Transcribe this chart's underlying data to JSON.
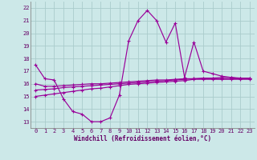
{
  "xlabel": "Windchill (Refroidissement éolien,°C)",
  "background_color": "#cce8e8",
  "grid_color": "#aacccc",
  "line_color": "#990099",
  "xlim": [
    -0.5,
    23.5
  ],
  "ylim": [
    12.5,
    22.5
  ],
  "yticks": [
    13,
    14,
    15,
    16,
    17,
    18,
    19,
    20,
    21,
    22
  ],
  "xticks": [
    0,
    1,
    2,
    3,
    4,
    5,
    6,
    7,
    8,
    9,
    10,
    11,
    12,
    13,
    14,
    15,
    16,
    17,
    18,
    19,
    20,
    21,
    22,
    23
  ],
  "hours": [
    0,
    1,
    2,
    3,
    4,
    5,
    6,
    7,
    8,
    9,
    10,
    11,
    12,
    13,
    14,
    15,
    16,
    17,
    18,
    19,
    20,
    21,
    22,
    23
  ],
  "line1": [
    17.5,
    16.4,
    16.3,
    14.8,
    13.8,
    13.6,
    13.0,
    13.0,
    13.3,
    15.1,
    19.4,
    21.0,
    21.8,
    21.0,
    19.3,
    20.8,
    16.5,
    19.3,
    17.0,
    16.8,
    16.6,
    16.5,
    16.4,
    16.4
  ],
  "line2": [
    16.0,
    15.8,
    15.8,
    15.85,
    15.9,
    15.95,
    16.0,
    16.0,
    16.05,
    16.1,
    16.15,
    16.2,
    16.25,
    16.3,
    16.3,
    16.35,
    16.4,
    16.4,
    16.45,
    16.45,
    16.5,
    16.5,
    16.45,
    16.45
  ],
  "line3": [
    15.5,
    15.55,
    15.6,
    15.7,
    15.75,
    15.8,
    15.85,
    15.9,
    15.95,
    16.0,
    16.05,
    16.1,
    16.15,
    16.2,
    16.25,
    16.3,
    16.35,
    16.4,
    16.4,
    16.4,
    16.4,
    16.4,
    16.4,
    16.4
  ],
  "line4": [
    15.0,
    15.1,
    15.2,
    15.3,
    15.4,
    15.5,
    15.6,
    15.65,
    15.75,
    15.85,
    15.95,
    16.0,
    16.05,
    16.1,
    16.15,
    16.2,
    16.25,
    16.35,
    16.35,
    16.35,
    16.35,
    16.35,
    16.35,
    16.35
  ]
}
